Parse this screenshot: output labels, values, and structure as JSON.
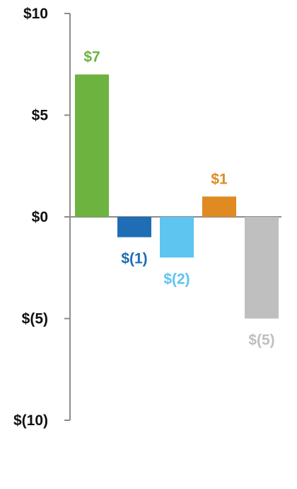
{
  "chart_data": {
    "type": "bar",
    "title": "",
    "xlabel": "",
    "ylabel": "",
    "ylim": [
      -10,
      10
    ],
    "yticks": [
      10,
      5,
      0,
      -5,
      -10
    ],
    "ytick_labels": [
      "$10",
      "$5",
      "$0",
      "$(5)",
      "$(10)"
    ],
    "values": [
      7,
      -1,
      -2,
      1,
      -5
    ],
    "data_labels": [
      "$7",
      "$(1)",
      "$(2)",
      "$1",
      "$(5)"
    ],
    "colors": [
      "#6db33f",
      "#1f6db5",
      "#5ec4f0",
      "#e08a22",
      "#bfbfbf"
    ],
    "axis_color": "#8c8c8c",
    "grid": false,
    "legend": "none"
  }
}
